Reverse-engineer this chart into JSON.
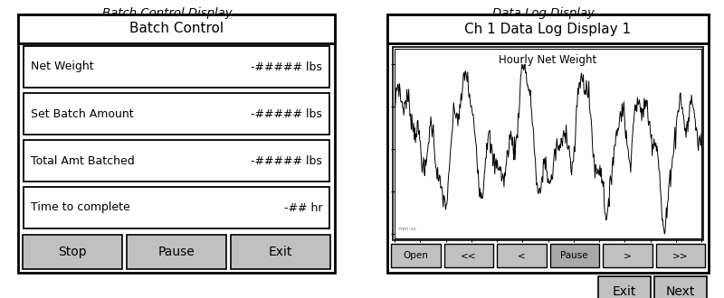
{
  "white": "#ffffff",
  "light_gray": "#c0c0c0",
  "mid_gray": "#a8a8a8",
  "dark": "#000000",
  "left_title": "Batch Control Display",
  "right_title": "Data Log Display",
  "batch_header": "Batch Control",
  "batch_rows": [
    {
      "label": "Net Weight",
      "value": "-##### lbs"
    },
    {
      "label": "Set Batch Amount",
      "value": "-##### lbs"
    },
    {
      "label": "Total Amt Batched",
      "value": "-##### lbs"
    },
    {
      "label": "Time to complete",
      "value": "-## hr"
    }
  ],
  "batch_buttons": [
    "Stop",
    "Pause",
    "Exit"
  ],
  "log_header": "Ch 1 Data Log Display 1",
  "log_chart_title": "Hourly Net Weight",
  "log_nav_buttons": [
    "Open",
    "<<",
    "<",
    "Pause",
    ">",
    ">>"
  ],
  "log_footer_buttons": [
    "Exit",
    "Next"
  ],
  "title_fontsize": 9.5,
  "header_fontsize": 11,
  "row_fontsize": 9,
  "button_fontsize": 10,
  "nav_fontsize": 7.5
}
